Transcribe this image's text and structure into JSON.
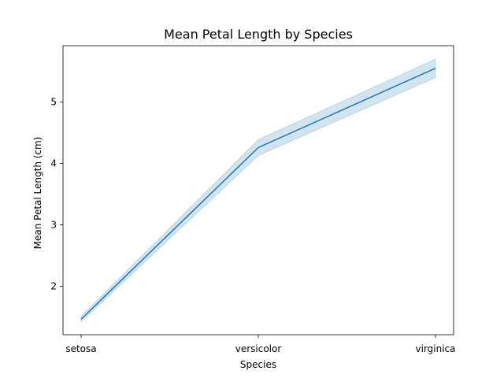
{
  "chart_data": {
    "type": "line",
    "title": "Mean Petal Length by Species",
    "xlabel": "Species",
    "ylabel": "Mean Petal Length (cm)",
    "categories": [
      "setosa",
      "versicolor",
      "virginica"
    ],
    "series": [
      {
        "values": [
          1.462,
          4.26,
          5.552
        ],
        "ci_lower": [
          1.42,
          4.13,
          5.4
        ],
        "ci_upper": [
          1.51,
          4.39,
          5.7
        ],
        "color": "#1f77b4",
        "band_color": "#1f77b4"
      }
    ],
    "ylim": [
      1.21,
      5.92
    ],
    "yticks": [
      "2",
      "3",
      "4",
      "5"
    ],
    "grid": false,
    "legend": "none"
  }
}
